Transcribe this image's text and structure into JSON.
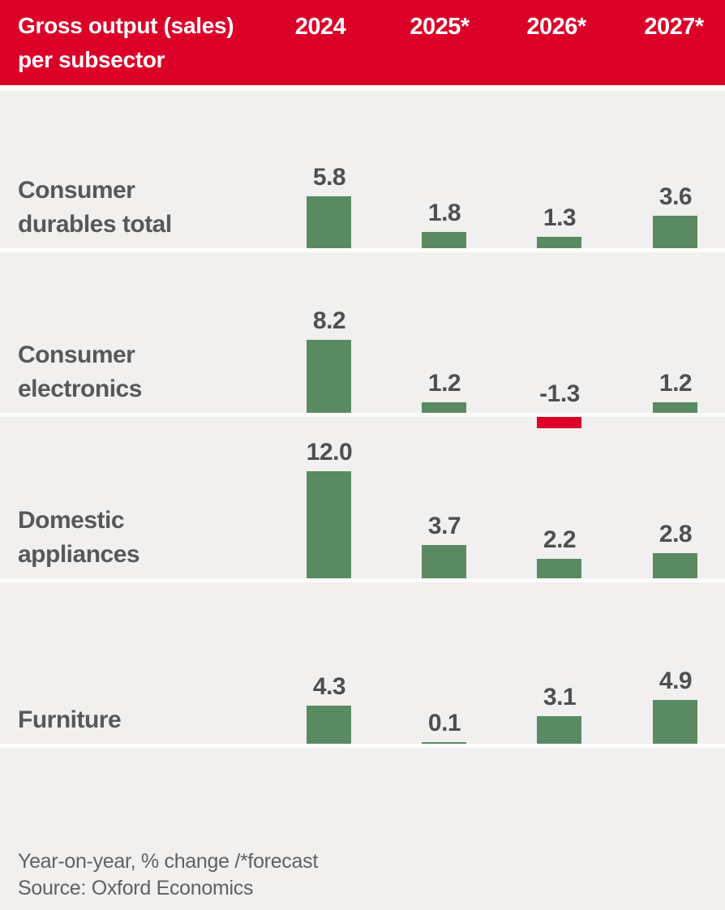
{
  "header": {
    "title_line1": "Gross output (sales)",
    "title_line2": "per subsector"
  },
  "chart_data": {
    "type": "bar",
    "title": "Gross output (sales) per subsector",
    "categories": [
      "2024",
      "2025*",
      "2026*",
      "2027*"
    ],
    "series": [
      {
        "name": "Consumer durables total",
        "label_lines": [
          "Consumer",
          "durables total"
        ],
        "values": [
          5.8,
          1.8,
          1.3,
          3.6
        ]
      },
      {
        "name": "Consumer electronics",
        "label_lines": [
          "Consumer",
          "electronics"
        ],
        "values": [
          8.2,
          1.2,
          -1.3,
          1.2
        ]
      },
      {
        "name": "Domestic appliances",
        "label_lines": [
          "Domestic",
          "appliances"
        ],
        "values": [
          12.0,
          3.7,
          2.2,
          2.8
        ]
      },
      {
        "name": "Furniture",
        "label_lines": [
          "Furniture"
        ],
        "values": [
          4.3,
          0.1,
          3.1,
          4.9
        ]
      }
    ],
    "value_format": "one_decimal",
    "unit": "Year-on-year % change",
    "legend_position": "none",
    "grid": false
  },
  "footer": {
    "note": "Year-on-year, % change /*forecast",
    "source": "Source: Oxford Economics"
  },
  "colors": {
    "header_bg": "#dc0028",
    "header_text": "#ffffff",
    "positive_bar": "#598a63",
    "negative_bar": "#dc0028",
    "background": "#f1f0ee",
    "separator": "#fcfcfa",
    "row_label_text": "#57585a",
    "value_text": "#4e4f51",
    "footer_text": "#5e6164"
  }
}
